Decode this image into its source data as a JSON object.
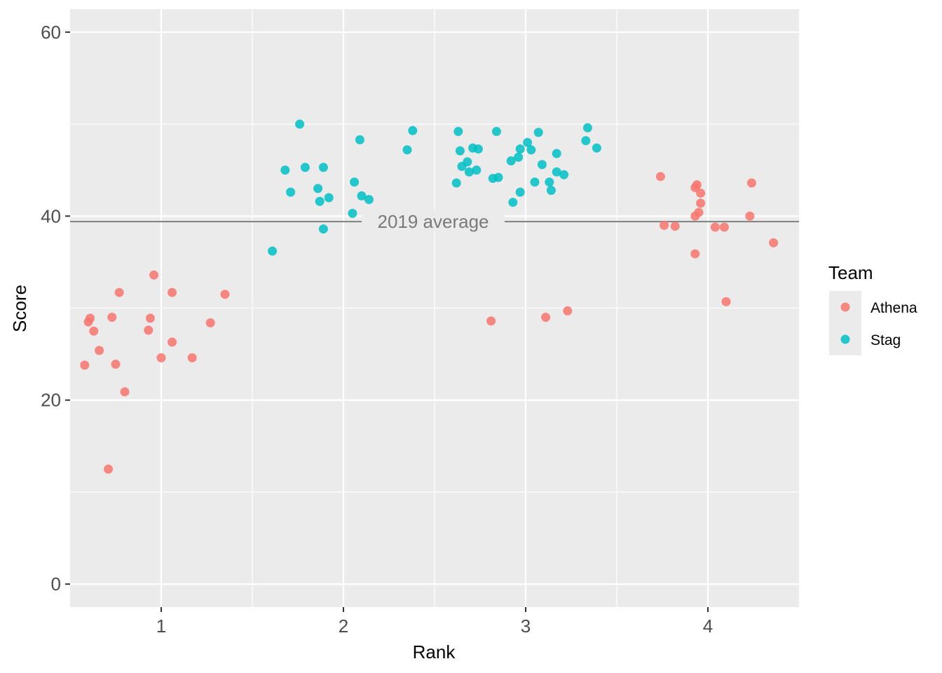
{
  "chart_data": {
    "type": "scatter",
    "xlabel": "Rank",
    "ylabel": "Score",
    "xlim": [
      0.5,
      4.5
    ],
    "ylim": [
      -2.5,
      62.5
    ],
    "x_ticks": [
      1,
      2,
      3,
      4
    ],
    "x_tick_labels": [
      "1",
      "2",
      "3",
      "4"
    ],
    "y_ticks": [
      0,
      20,
      40,
      60
    ],
    "y_tick_labels": [
      "0",
      "20",
      "40",
      "60"
    ],
    "grid": true,
    "legend": {
      "title": "Team",
      "position": "right"
    },
    "reference_line": {
      "y": 39.4,
      "label": "2019 average",
      "color": "#7f7f7f"
    },
    "series": [
      {
        "name": "Athena",
        "color": "#F8766D",
        "points": [
          [
            0.58,
            23.8
          ],
          [
            0.6,
            28.5
          ],
          [
            0.61,
            28.9
          ],
          [
            0.63,
            27.5
          ],
          [
            0.66,
            25.4
          ],
          [
            0.71,
            12.5
          ],
          [
            0.73,
            29.0
          ],
          [
            0.75,
            23.9
          ],
          [
            0.77,
            31.7
          ],
          [
            0.8,
            20.9
          ],
          [
            0.93,
            27.6
          ],
          [
            0.94,
            28.9
          ],
          [
            0.96,
            33.6
          ],
          [
            1.0,
            24.6
          ],
          [
            1.06,
            31.7
          ],
          [
            1.06,
            26.3
          ],
          [
            1.17,
            24.6
          ],
          [
            1.27,
            28.4
          ],
          [
            1.35,
            31.5
          ],
          [
            2.81,
            28.6
          ],
          [
            3.11,
            29.0
          ],
          [
            3.23,
            29.7
          ],
          [
            3.74,
            44.3
          ],
          [
            3.76,
            39.0
          ],
          [
            3.82,
            38.9
          ],
          [
            3.93,
            43.1
          ],
          [
            3.93,
            35.9
          ],
          [
            3.93,
            40.0
          ],
          [
            3.94,
            43.4
          ],
          [
            3.95,
            40.4
          ],
          [
            3.96,
            41.4
          ],
          [
            3.96,
            42.5
          ],
          [
            4.04,
            38.8
          ],
          [
            4.09,
            38.8
          ],
          [
            4.1,
            30.7
          ],
          [
            4.23,
            40.0
          ],
          [
            4.24,
            43.6
          ],
          [
            4.36,
            37.1
          ]
        ]
      },
      {
        "name": "Stag",
        "color": "#00BFC4",
        "points": [
          [
            1.61,
            36.2
          ],
          [
            1.68,
            45.0
          ],
          [
            1.71,
            42.6
          ],
          [
            1.76,
            50.0
          ],
          [
            1.79,
            45.3
          ],
          [
            1.86,
            43.0
          ],
          [
            1.87,
            41.6
          ],
          [
            1.89,
            45.3
          ],
          [
            1.89,
            38.6
          ],
          [
            1.92,
            42.0
          ],
          [
            2.05,
            40.3
          ],
          [
            2.06,
            43.7
          ],
          [
            2.09,
            48.3
          ],
          [
            2.1,
            42.2
          ],
          [
            2.14,
            41.8
          ],
          [
            2.35,
            47.2
          ],
          [
            2.38,
            49.3
          ],
          [
            2.62,
            43.6
          ],
          [
            2.63,
            49.2
          ],
          [
            2.64,
            47.1
          ],
          [
            2.65,
            45.4
          ],
          [
            2.68,
            45.9
          ],
          [
            2.69,
            44.8
          ],
          [
            2.71,
            47.4
          ],
          [
            2.73,
            45.0
          ],
          [
            2.74,
            47.3
          ],
          [
            2.82,
            44.1
          ],
          [
            2.84,
            49.2
          ],
          [
            2.85,
            44.2
          ],
          [
            2.92,
            46.0
          ],
          [
            2.93,
            41.5
          ],
          [
            2.96,
            46.4
          ],
          [
            2.97,
            47.3
          ],
          [
            2.97,
            42.6
          ],
          [
            3.01,
            48.0
          ],
          [
            3.03,
            47.2
          ],
          [
            3.05,
            43.7
          ],
          [
            3.07,
            49.1
          ],
          [
            3.09,
            45.6
          ],
          [
            3.13,
            43.7
          ],
          [
            3.14,
            42.8
          ],
          [
            3.17,
            46.8
          ],
          [
            3.17,
            44.8
          ],
          [
            3.21,
            44.5
          ],
          [
            3.33,
            48.2
          ],
          [
            3.34,
            49.6
          ],
          [
            3.39,
            47.4
          ]
        ]
      }
    ]
  }
}
